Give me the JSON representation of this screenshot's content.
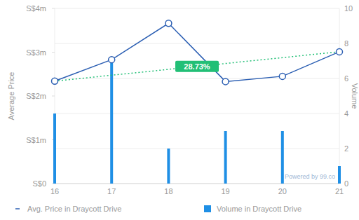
{
  "chart_data": {
    "type": "bar_line",
    "categories": [
      "16",
      "17",
      "18",
      "19",
      "20",
      "21"
    ],
    "y_label": "Average Price",
    "y2_label": "Volume",
    "ylim": [
      0,
      4000000
    ],
    "yticks": [
      {
        "value": 0,
        "label": "S$0"
      },
      {
        "value": 1000000,
        "label": "S$1m"
      },
      {
        "value": 2000000,
        "label": "S$2m"
      },
      {
        "value": 3000000,
        "label": "S$3m"
      },
      {
        "value": 4000000,
        "label": "S$4m"
      }
    ],
    "y2lim": [
      0,
      10
    ],
    "y2ticks": [
      0,
      2,
      4,
      6,
      8,
      10
    ],
    "grid": true,
    "legend": "bottom",
    "series": [
      {
        "name": "Avg. Price in Draycott Drive",
        "type": "line",
        "color": "#2c5fb3",
        "marker": "circle",
        "values": [
          2340000,
          2830000,
          3660000,
          2330000,
          2450000,
          3010000
        ]
      },
      {
        "name": "Volume in Draycott Drive",
        "type": "bar",
        "axis": "y2",
        "color": "#1f8fe5",
        "values": [
          4,
          7,
          2,
          3,
          3,
          1
        ]
      }
    ],
    "annotations": [
      {
        "text": "28.73%",
        "color": "#22bf76",
        "line_style": "dotted"
      },
      {
        "text": "Powered by 99.co",
        "color": "#9fb8d6"
      }
    ]
  }
}
